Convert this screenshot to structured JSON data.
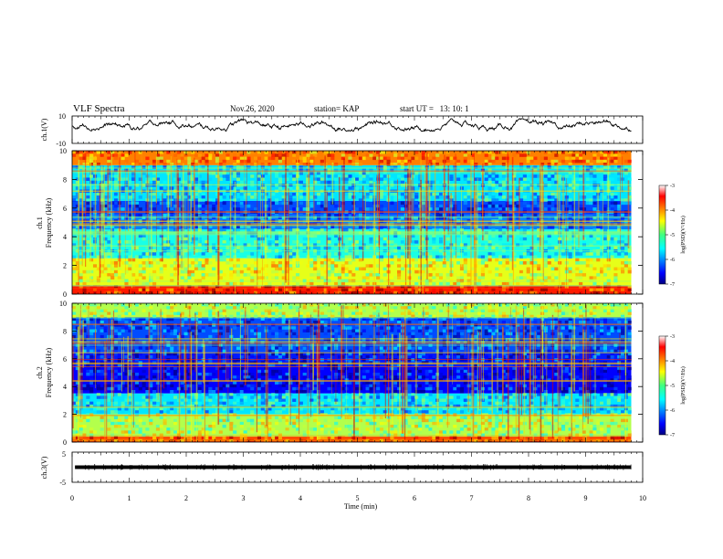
{
  "header": {
    "title": "VLF Spectra",
    "date": "Nov.26, 2020",
    "station": "station= KAP",
    "start": "start UT =   13: 10: 1"
  },
  "chart_data": [
    {
      "id": "ch1_voltage",
      "type": "line",
      "ylabel": "ch.1(V)",
      "ylim": [
        -10,
        10
      ],
      "yticklabels": [
        "10",
        "-10"
      ],
      "xlim": [
        0,
        10
      ],
      "note_values": "waveform amplitude approx. +/-5 V oscillating around ~0 to 3 V",
      "series": [
        {
          "x_start": 0,
          "x_end": 9.8,
          "approx_range": [
            -1,
            8
          ]
        }
      ]
    },
    {
      "id": "ch1_spectrogram",
      "type": "heatmap",
      "ylabel": "ch.1\nFrequency (kHz)",
      "ylim": [
        0,
        10
      ],
      "yticks": [
        "0",
        "2",
        "4",
        "6",
        "8",
        "10"
      ],
      "xlim": [
        0,
        9.8
      ],
      "colorbar": {
        "label": "log(PSD)(V²/Hz)",
        "range": [
          -7,
          -3
        ],
        "ticks": [
          "-3",
          "-4",
          "-5",
          "-6",
          "-7"
        ]
      },
      "bands": [
        {
          "from": 9.0,
          "to": 10.0,
          "level": -4.0
        },
        {
          "from": 6.5,
          "to": 9.0,
          "level": -5.6
        },
        {
          "from": 5.5,
          "to": 6.5,
          "level": -6.2
        },
        {
          "from": 4.5,
          "to": 5.5,
          "level": -6.0
        },
        {
          "from": 2.5,
          "to": 4.5,
          "level": -5.4
        },
        {
          "from": 0.6,
          "to": 2.5,
          "level": -4.6
        },
        {
          "from": 0.0,
          "to": 0.6,
          "level": -3.6
        }
      ]
    },
    {
      "id": "ch2_spectrogram",
      "type": "heatmap",
      "ylabel": "ch.2\nFrequency (kHz)",
      "ylim": [
        0,
        10
      ],
      "yticks": [
        "0",
        "2",
        "4",
        "6",
        "8",
        "10"
      ],
      "xlim": [
        0,
        9.8
      ],
      "colorbar": {
        "label": "log(PSD)(V²/Hz)",
        "range": [
          -7,
          -3
        ],
        "ticks": [
          "-3",
          "-4",
          "-5",
          "-6",
          "-7"
        ]
      },
      "bands": [
        {
          "from": 9.0,
          "to": 10.0,
          "level": -4.8
        },
        {
          "from": 6.5,
          "to": 9.0,
          "level": -6.2
        },
        {
          "from": 5.5,
          "to": 6.5,
          "level": -6.4
        },
        {
          "from": 3.5,
          "to": 5.5,
          "level": -6.5
        },
        {
          "from": 2.0,
          "to": 3.5,
          "level": -5.6
        },
        {
          "from": 0.4,
          "to": 2.0,
          "level": -4.8
        },
        {
          "from": 0.0,
          "to": 0.4,
          "level": -3.8
        }
      ]
    },
    {
      "id": "ch3_voltage",
      "type": "line",
      "ylabel": "ch.3(V)",
      "ylim": [
        -5,
        5
      ],
      "yticklabels": [
        "5",
        "-5"
      ],
      "xlim": [
        0,
        10
      ],
      "series": [
        {
          "x_start": 0.05,
          "x_end": 9.8,
          "approx_level": 0,
          "approx_spread": 0.6
        }
      ]
    }
  ],
  "x_axis": {
    "label": "Time (min)",
    "range": [
      0,
      10
    ],
    "ticks": [
      "0",
      "1",
      "2",
      "3",
      "4",
      "5",
      "6",
      "7",
      "8",
      "9",
      "10"
    ]
  }
}
